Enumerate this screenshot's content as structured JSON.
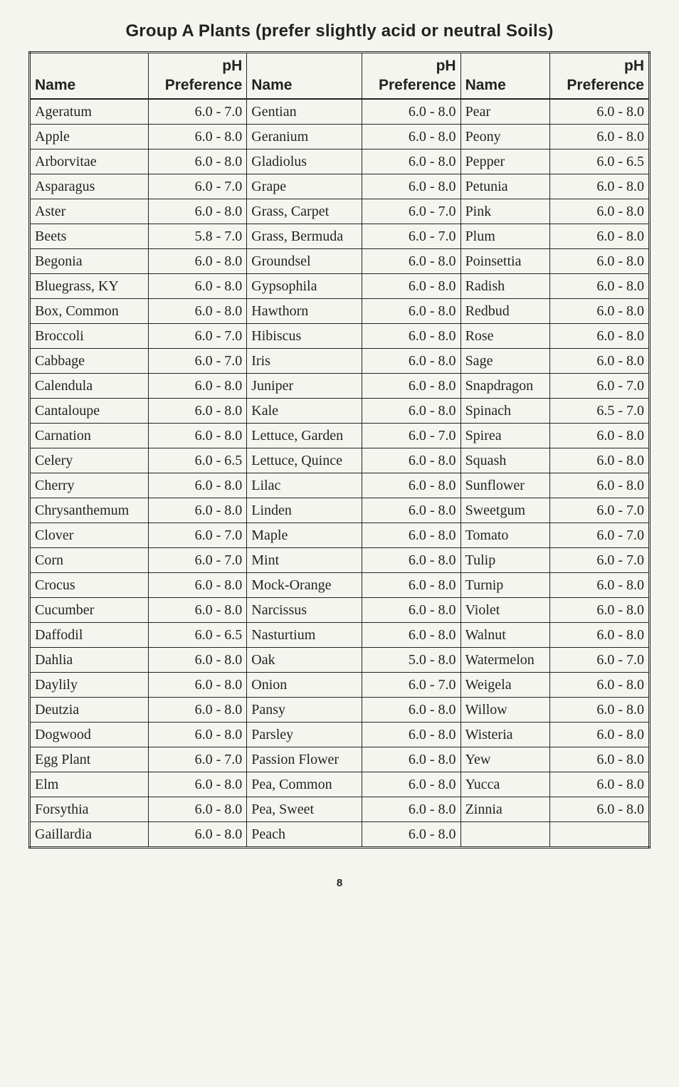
{
  "title": "Group A Plants (prefer slightly acid or neutral Soils)",
  "page_number": "8",
  "headers": {
    "name": "Name",
    "ph": "pH\nPreference"
  },
  "columns": [
    [
      {
        "n": "Ageratum",
        "p": "6.0 - 7.0"
      },
      {
        "n": "Apple",
        "p": "6.0 - 8.0"
      },
      {
        "n": "Arborvitae",
        "p": "6.0 - 8.0"
      },
      {
        "n": "Asparagus",
        "p": "6.0 - 7.0"
      },
      {
        "n": "Aster",
        "p": "6.0 - 8.0"
      },
      {
        "n": "Beets",
        "p": "5.8 - 7.0"
      },
      {
        "n": "Begonia",
        "p": "6.0 - 8.0"
      },
      {
        "n": "Bluegrass, KY",
        "p": "6.0 - 8.0"
      },
      {
        "n": "Box, Common",
        "p": "6.0 - 8.0"
      },
      {
        "n": "Broccoli",
        "p": "6.0 - 7.0"
      },
      {
        "n": "Cabbage",
        "p": "6.0 - 7.0"
      },
      {
        "n": "Calendula",
        "p": "6.0 - 8.0"
      },
      {
        "n": "Cantaloupe",
        "p": "6.0 - 8.0"
      },
      {
        "n": "Carnation",
        "p": "6.0 - 8.0"
      },
      {
        "n": "Celery",
        "p": "6.0 - 6.5"
      },
      {
        "n": "Cherry",
        "p": "6.0 - 8.0"
      },
      {
        "n": "Chrysanthemum",
        "p": "6.0 - 8.0"
      },
      {
        "n": "Clover",
        "p": "6.0 - 7.0"
      },
      {
        "n": "Corn",
        "p": "6.0 - 7.0"
      },
      {
        "n": "Crocus",
        "p": "6.0 - 8.0"
      },
      {
        "n": "Cucumber",
        "p": "6.0 - 8.0"
      },
      {
        "n": "Daffodil",
        "p": "6.0 - 6.5"
      },
      {
        "n": "Dahlia",
        "p": "6.0 - 8.0"
      },
      {
        "n": "Daylily",
        "p": "6.0 - 8.0"
      },
      {
        "n": "Deutzia",
        "p": "6.0 - 8.0"
      },
      {
        "n": "Dogwood",
        "p": "6.0 - 8.0"
      },
      {
        "n": "Egg Plant",
        "p": "6.0 - 7.0"
      },
      {
        "n": "Elm",
        "p": "6.0 - 8.0"
      },
      {
        "n": "Forsythia",
        "p": "6.0 - 8.0"
      },
      {
        "n": "Gaillardia",
        "p": "6.0 - 8.0"
      }
    ],
    [
      {
        "n": "Gentian",
        "p": "6.0 - 8.0"
      },
      {
        "n": "Geranium",
        "p": "6.0 - 8.0"
      },
      {
        "n": "Gladiolus",
        "p": "6.0 - 8.0"
      },
      {
        "n": "Grape",
        "p": "6.0 - 8.0"
      },
      {
        "n": "Grass, Carpet",
        "p": "6.0 - 7.0"
      },
      {
        "n": "Grass, Bermuda",
        "p": "6.0 - 7.0"
      },
      {
        "n": "Groundsel",
        "p": "6.0 - 8.0"
      },
      {
        "n": "Gypsophila",
        "p": "6.0 - 8.0"
      },
      {
        "n": "Hawthorn",
        "p": "6.0 - 8.0"
      },
      {
        "n": "Hibiscus",
        "p": "6.0 - 8.0"
      },
      {
        "n": "Iris",
        "p": "6.0 - 8.0"
      },
      {
        "n": "Juniper",
        "p": "6.0 - 8.0"
      },
      {
        "n": "Kale",
        "p": "6.0 - 8.0"
      },
      {
        "n": "Lettuce, Garden",
        "p": "6.0 - 7.0"
      },
      {
        "n": "Lettuce, Quince",
        "p": "6.0 - 8.0"
      },
      {
        "n": "Lilac",
        "p": "6.0 - 8.0"
      },
      {
        "n": "Linden",
        "p": "6.0 - 8.0"
      },
      {
        "n": "Maple",
        "p": "6.0 - 8.0"
      },
      {
        "n": "Mint",
        "p": "6.0 - 8.0"
      },
      {
        "n": "Mock-Orange",
        "p": "6.0 - 8.0"
      },
      {
        "n": "Narcissus",
        "p": "6.0 - 8.0"
      },
      {
        "n": "Nasturtium",
        "p": "6.0 - 8.0"
      },
      {
        "n": "Oak",
        "p": "5.0 - 8.0"
      },
      {
        "n": "Onion",
        "p": "6.0 - 7.0"
      },
      {
        "n": "Pansy",
        "p": "6.0 - 8.0"
      },
      {
        "n": "Parsley",
        "p": "6.0 - 8.0"
      },
      {
        "n": "Passion Flower",
        "p": "6.0 - 8.0"
      },
      {
        "n": "Pea, Common",
        "p": "6.0 - 8.0"
      },
      {
        "n": "Pea, Sweet",
        "p": "6.0 - 8.0"
      },
      {
        "n": "Peach",
        "p": "6.0 - 8.0"
      }
    ],
    [
      {
        "n": "Pear",
        "p": "6.0 - 8.0"
      },
      {
        "n": "Peony",
        "p": "6.0 - 8.0"
      },
      {
        "n": "Pepper",
        "p": "6.0 - 6.5"
      },
      {
        "n": "Petunia",
        "p": "6.0 - 8.0"
      },
      {
        "n": "Pink",
        "p": "6.0 - 8.0"
      },
      {
        "n": "Plum",
        "p": "6.0 - 8.0"
      },
      {
        "n": "Poinsettia",
        "p": "6.0 - 8.0"
      },
      {
        "n": "Radish",
        "p": "6.0 - 8.0"
      },
      {
        "n": "Redbud",
        "p": "6.0 - 8.0"
      },
      {
        "n": "Rose",
        "p": "6.0 - 8.0"
      },
      {
        "n": "Sage",
        "p": "6.0 - 8.0"
      },
      {
        "n": "Snapdragon",
        "p": "6.0 - 7.0"
      },
      {
        "n": "Spinach",
        "p": "6.5 - 7.0"
      },
      {
        "n": "Spirea",
        "p": "6.0 - 8.0"
      },
      {
        "n": "Squash",
        "p": "6.0 - 8.0"
      },
      {
        "n": "Sunflower",
        "p": "6.0 - 8.0"
      },
      {
        "n": "Sweetgum",
        "p": "6.0 - 7.0"
      },
      {
        "n": "Tomato",
        "p": "6.0 - 7.0"
      },
      {
        "n": "Tulip",
        "p": "6.0 - 7.0"
      },
      {
        "n": "Turnip",
        "p": "6.0 - 8.0"
      },
      {
        "n": "Violet",
        "p": "6.0 - 8.0"
      },
      {
        "n": "Walnut",
        "p": "6.0 - 8.0"
      },
      {
        "n": "Watermelon",
        "p": "6.0 - 7.0"
      },
      {
        "n": "Weigela",
        "p": "6.0 - 8.0"
      },
      {
        "n": "Willow",
        "p": "6.0 - 8.0"
      },
      {
        "n": "Wisteria",
        "p": "6.0 - 8.0"
      },
      {
        "n": "Yew",
        "p": "6.0 - 8.0"
      },
      {
        "n": "Yucca",
        "p": "6.0 - 8.0"
      },
      {
        "n": "Zinnia",
        "p": "6.0 - 8.0"
      },
      {
        "n": "",
        "p": ""
      }
    ]
  ]
}
